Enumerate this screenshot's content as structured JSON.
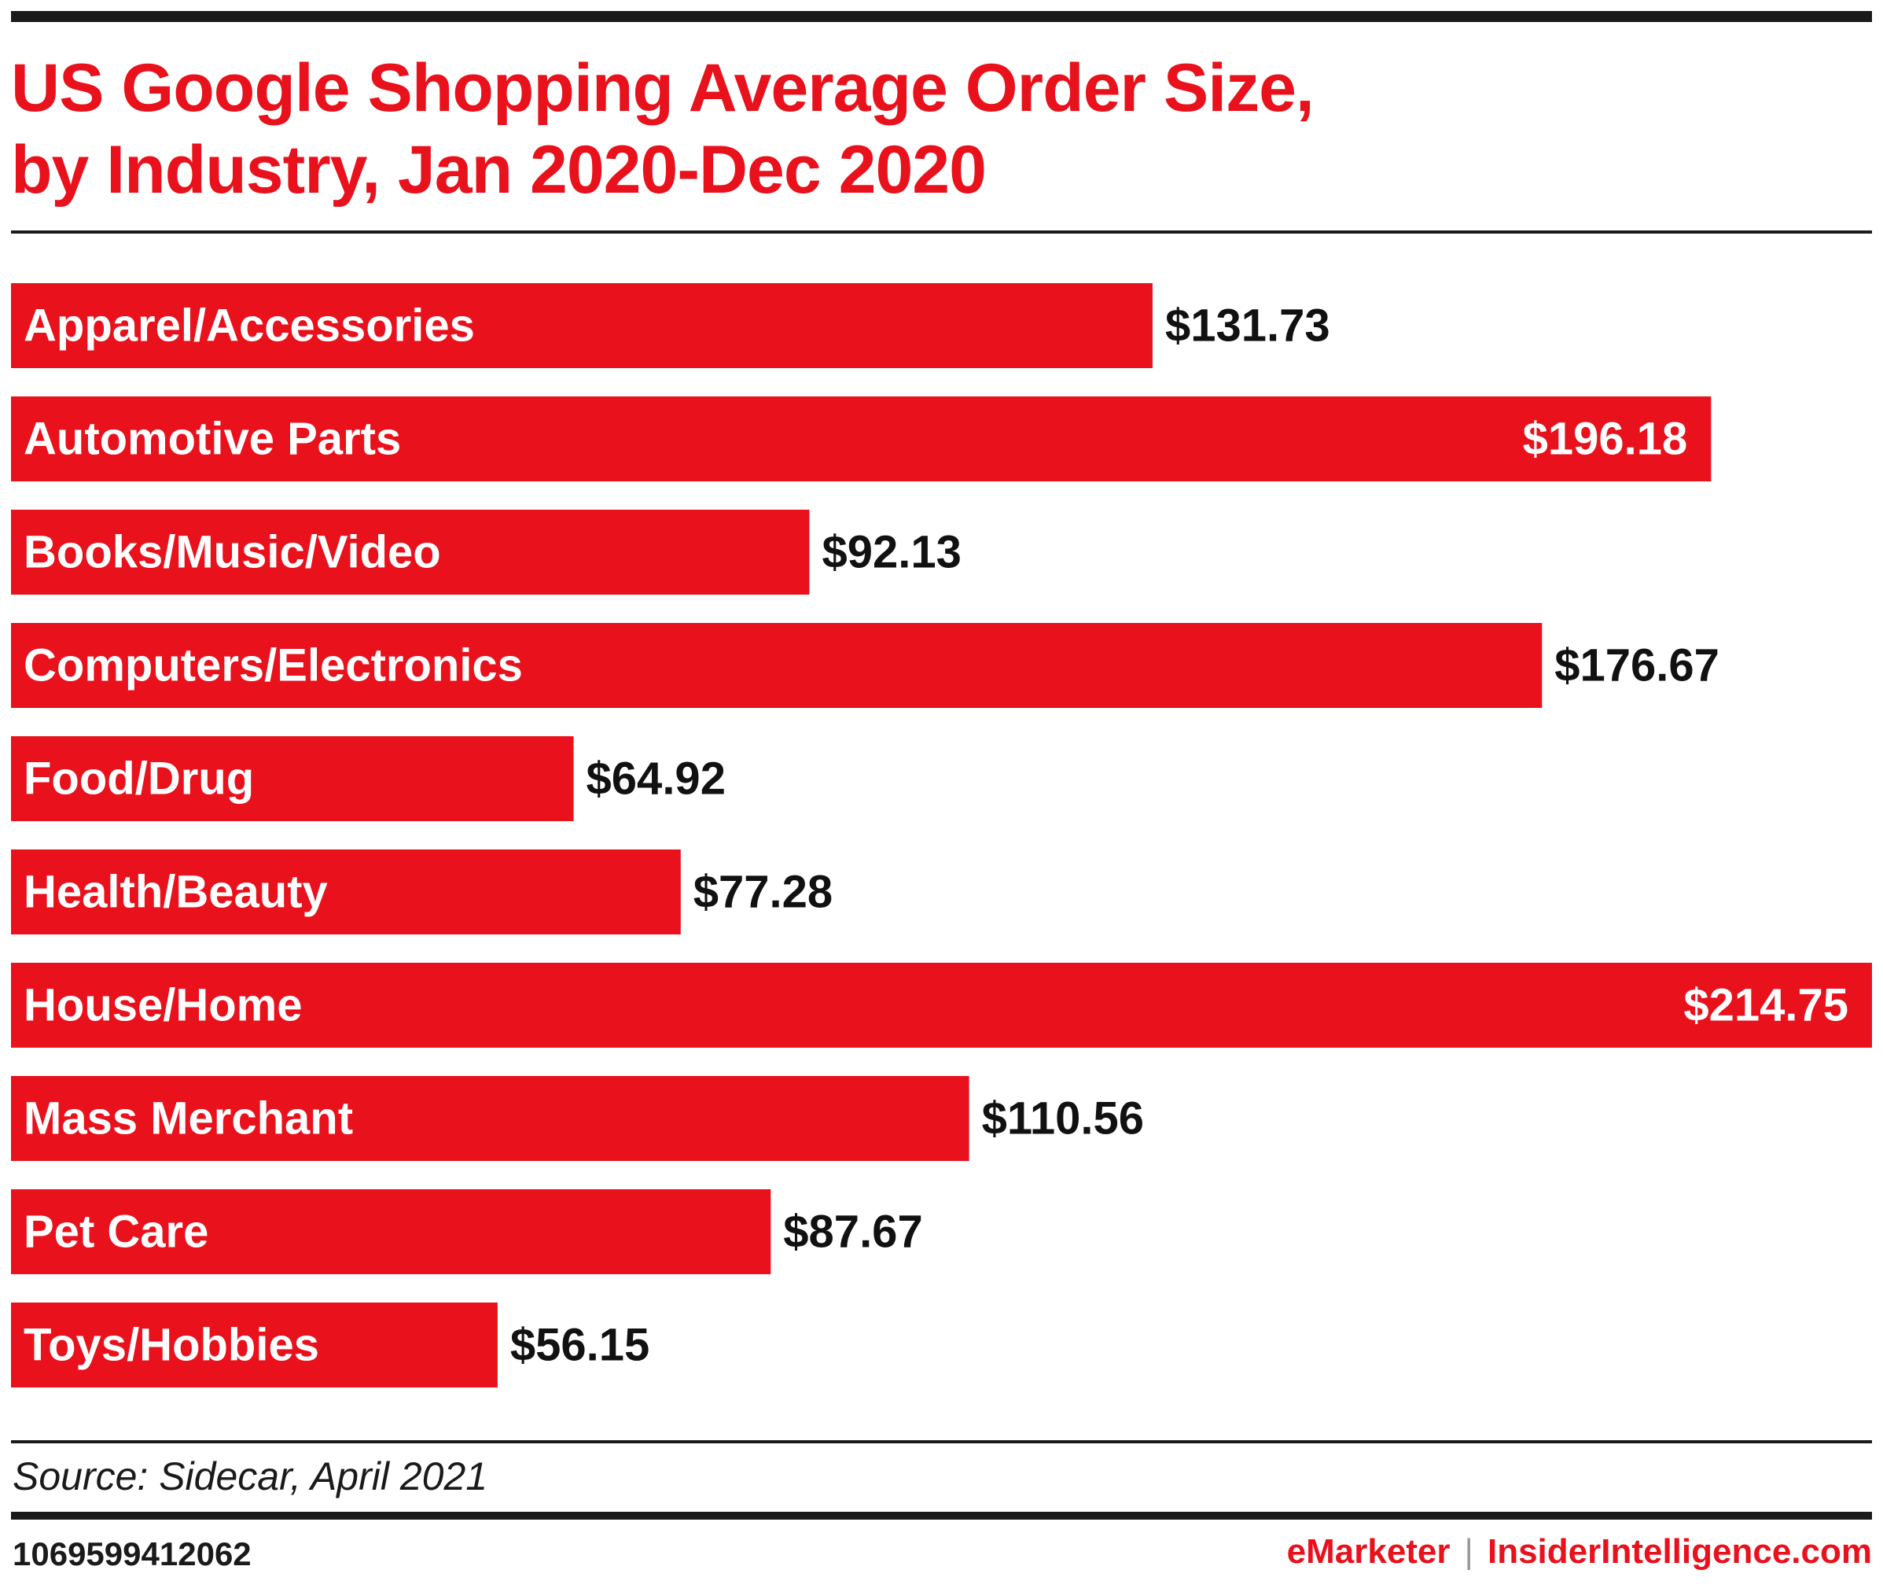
{
  "title": {
    "line1": "US Google Shopping Average Order Size,",
    "line2": "by Industry, Jan 2020-Dec 2020"
  },
  "colors": {
    "bar": "#e8111c",
    "title": "#e8111c",
    "text": "#111111",
    "label_on_bar": "#ffffff"
  },
  "chart_data": {
    "type": "bar",
    "orientation": "horizontal",
    "title": "US Google Shopping Average Order Size, by Industry, Jan 2020-Dec 2020",
    "categories": [
      "Apparel/Accessories",
      "Automotive Parts",
      "Books/Music/Video",
      "Computers/Electronics",
      "Food/Drug",
      "Health/Beauty",
      "House/Home",
      "Mass Merchant",
      "Pet Care",
      "Toys/Hobbies"
    ],
    "values": [
      131.73,
      196.18,
      92.13,
      176.67,
      64.92,
      77.28,
      214.75,
      110.56,
      87.67,
      56.15
    ],
    "value_labels": [
      "$131.73",
      "$196.18",
      "$92.13",
      "$176.67",
      "$64.92",
      "$77.28",
      "$214.75",
      "$110.56",
      "$87.67",
      "$56.15"
    ],
    "xlabel": "",
    "ylabel": "",
    "xlim": [
      0,
      214.75
    ],
    "grid": false,
    "legend": "none"
  },
  "footer": {
    "source": "Source: Sidecar, April 2021",
    "chart_id": "1069599412062",
    "brand_emarketer": "eMarketer",
    "brand_separator": "|",
    "brand_insider": "InsiderIntelligence.com"
  }
}
